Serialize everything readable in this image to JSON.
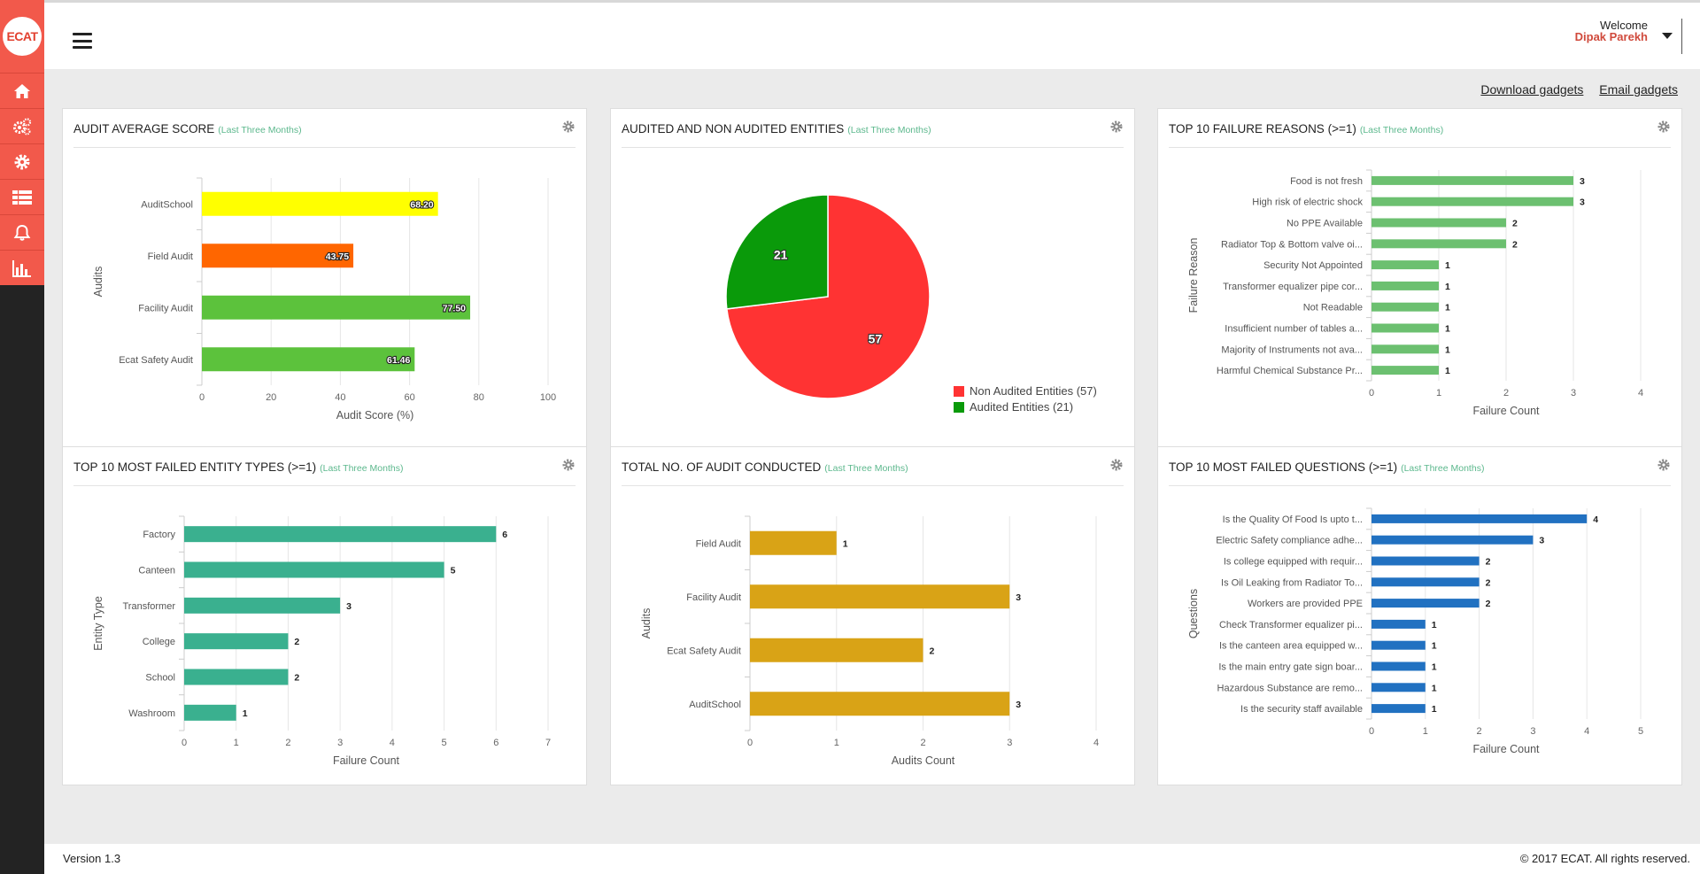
{
  "app": {
    "logo_text": "ECAT"
  },
  "sidebar": {
    "items": [
      {
        "icon": "home-icon"
      },
      {
        "icon": "cogs-icon"
      },
      {
        "icon": "gear-icon"
      },
      {
        "icon": "list-icon"
      },
      {
        "icon": "bell-icon"
      },
      {
        "icon": "bar-chart-icon"
      }
    ]
  },
  "header": {
    "welcome": "Welcome",
    "user_name": "Dipak Parekh"
  },
  "actions": {
    "download": "Download gadgets",
    "email": "Email gadgets"
  },
  "footer": {
    "version": "Version 1.3",
    "copyright": "© 2017 ECAT. All rights reserved."
  },
  "panels": [
    {
      "title": "AUDIT AVERAGE SCORE",
      "subtitle": "(Last Three Months)"
    },
    {
      "title": "AUDITED AND NON AUDITED ENTITIES",
      "subtitle": "(Last Three Months)"
    },
    {
      "title": "TOP 10 FAILURE REASONS (>=1)",
      "subtitle": "(Last Three Months)"
    },
    {
      "title": "TOP 10 MOST FAILED ENTITY TYPES (>=1)",
      "subtitle": "(Last Three Months)"
    },
    {
      "title": "TOTAL NO. OF AUDIT CONDUCTED",
      "subtitle": "(Last Three Months)"
    },
    {
      "title": "TOP 10 MOST FAILED QUESTIONS (>=1)",
      "subtitle": "(Last Three Months)"
    }
  ],
  "chart_data": [
    {
      "type": "bar",
      "orientation": "horizontal",
      "categories": [
        "AuditSchool",
        "Field Audit",
        "Facility Audit",
        "Ecat Safety Audit"
      ],
      "values": [
        68.2,
        43.75,
        77.5,
        61.46
      ],
      "value_labels": [
        "68.20",
        "43.75",
        "77.50",
        "61.46"
      ],
      "colors": [
        "#ffff00",
        "#ff6600",
        "#5cc23c",
        "#5cc23c"
      ],
      "xlabel": "Audit Score (%)",
      "ylabel": "Audits",
      "xlim": [
        0,
        100
      ],
      "xticks": [
        0,
        20,
        40,
        60,
        80,
        100
      ],
      "grid": true
    },
    {
      "type": "pie",
      "slices": [
        {
          "label": "Non Audited Entities (57)",
          "value": 57,
          "color": "#ff3333"
        },
        {
          "label": "Audited Entities (21)",
          "value": 21,
          "color": "#0a9a0a"
        }
      ],
      "legend": "bottom-right"
    },
    {
      "type": "bar",
      "orientation": "horizontal",
      "categories": [
        "Food is not fresh",
        "High risk of electric shock",
        "No PPE Available",
        "Radiator Top & Bottom valve oi...",
        "Security Not Appointed",
        "Transformer equalizer pipe cor...",
        "Not Readable",
        "Insufficient number of tables a...",
        "Majority of Instruments not ava...",
        "Harmful Chemical Substance Pr..."
      ],
      "values": [
        3,
        3,
        2,
        2,
        1,
        1,
        1,
        1,
        1,
        1
      ],
      "color": "#6cc070",
      "xlabel": "Failure Count",
      "ylabel": "Failure Reason",
      "xlim": [
        0,
        4
      ],
      "xticks": [
        0,
        1,
        2,
        3,
        4
      ],
      "grid": true
    },
    {
      "type": "bar",
      "orientation": "horizontal",
      "categories": [
        "Factory",
        "Canteen",
        "Transformer",
        "College",
        "School",
        "Washroom"
      ],
      "values": [
        6,
        5,
        3,
        2,
        2,
        1
      ],
      "color": "#3ab08f",
      "xlabel": "Failure Count",
      "ylabel": "Entity Type",
      "xlim": [
        0,
        7
      ],
      "xticks": [
        0,
        1,
        2,
        3,
        4,
        5,
        6,
        7
      ],
      "grid": true
    },
    {
      "type": "bar",
      "orientation": "horizontal",
      "categories": [
        "Field Audit",
        "Facility Audit",
        "Ecat Safety Audit",
        "AuditSchool"
      ],
      "values": [
        1,
        3,
        2,
        3
      ],
      "color": "#d9a316",
      "xlabel": "Audits Count",
      "ylabel": "Audits",
      "xlim": [
        0,
        4
      ],
      "xticks": [
        0,
        1,
        2,
        3,
        4
      ],
      "grid": true
    },
    {
      "type": "bar",
      "orientation": "horizontal",
      "categories": [
        "Is the Quality Of Food Is upto t...",
        "Electric Safety compliance adhe...",
        "Is college equipped with requir...",
        "Is Oil Leaking from Radiator To...",
        "Workers are provided PPE",
        "Check Transformer equalizer pi...",
        "Is the canteen area equipped w...",
        "Is the main entry gate sign boar...",
        "Hazardous Substance are remo...",
        "Is the security staff available"
      ],
      "values": [
        4,
        3,
        2,
        2,
        2,
        1,
        1,
        1,
        1,
        1
      ],
      "color": "#2171c1",
      "xlabel": "Failure Count",
      "ylabel": "Questions",
      "xlim": [
        0,
        5
      ],
      "xticks": [
        0,
        1,
        2,
        3,
        4,
        5
      ],
      "grid": true
    }
  ]
}
